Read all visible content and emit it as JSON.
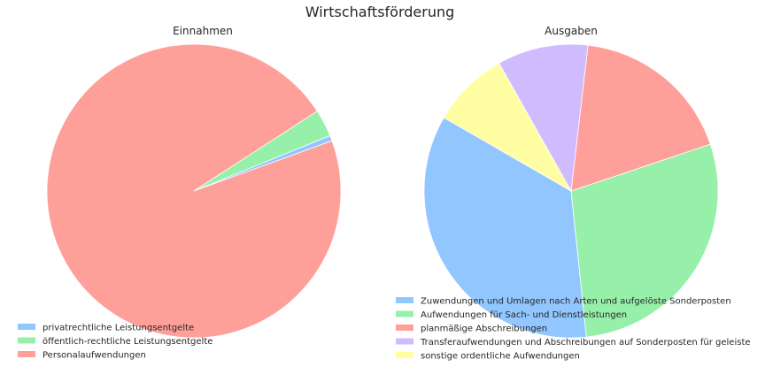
{
  "figure": {
    "title": "Wirtschaftsförderung"
  },
  "chart_data": [
    {
      "type": "pie",
      "title": "Einnahmen",
      "start_angle_deg": 20,
      "direction": "counterclockwise",
      "legend_position": "bottom-left",
      "slices": [
        {
          "label": "privatrechtliche Leistungsentgelte",
          "value": 0.6,
          "color": "#92c6ff"
        },
        {
          "label": "öffentlich-rechtliche Leistungsentgelte",
          "value": 3.0,
          "color": "#97f0aa"
        },
        {
          "label": "Personalaufwendungen",
          "value": 96.4,
          "color": "#ff9f9a"
        }
      ]
    },
    {
      "type": "pie",
      "title": "Ausgaben",
      "start_angle_deg": 150,
      "direction": "counterclockwise",
      "legend_position": "bottom-right",
      "slices": [
        {
          "label": "Zuwendungen und Umlagen nach Arten und aufgelöste Sonderposten",
          "value": 35.0,
          "color": "#92c6ff"
        },
        {
          "label": "Aufwendungen für Sach- und Dienstleistungen",
          "value": 28.5,
          "color": "#97f0aa"
        },
        {
          "label": "planmäßige Abschreibungen",
          "value": 18.0,
          "color": "#ff9f9a"
        },
        {
          "label": "Transferaufwendungen und Abschreibungen auf Sonderposten für geleiste",
          "value": 10.0,
          "color": "#d0bbff"
        },
        {
          "label": "sonstige ordentliche Aufwendungen",
          "value": 8.5,
          "color": "#fffea3"
        }
      ]
    }
  ]
}
